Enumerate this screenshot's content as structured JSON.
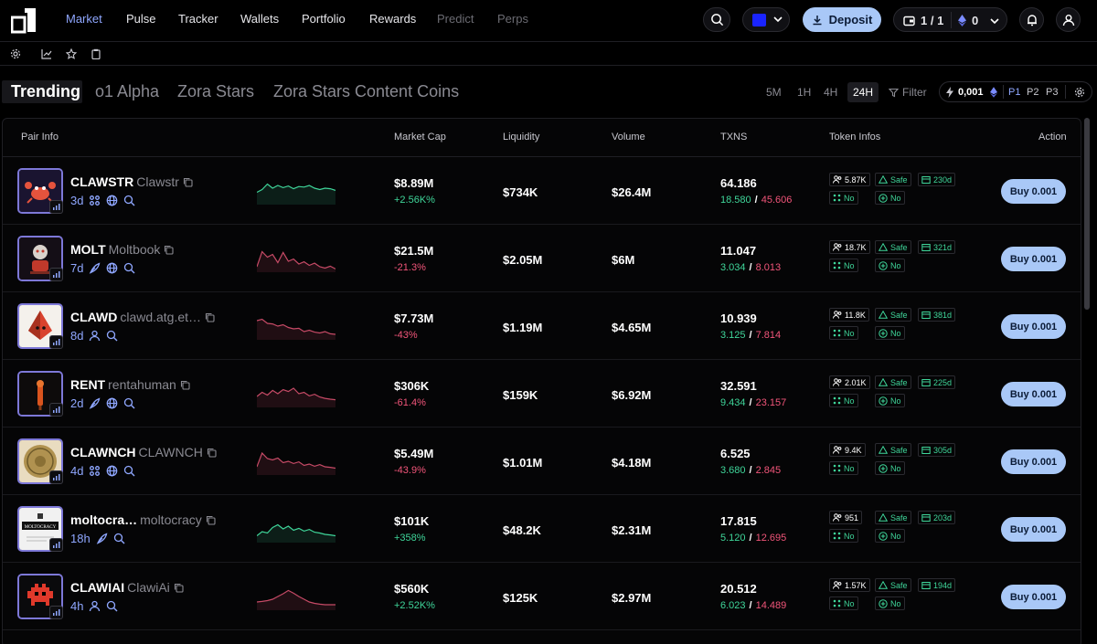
{
  "nav": {
    "items": [
      {
        "label": "Market",
        "state": "active"
      },
      {
        "label": "Pulse",
        "state": "normal"
      },
      {
        "label": "Tracker",
        "state": "normal"
      },
      {
        "label": "Wallets",
        "state": "normal"
      },
      {
        "label": "Portfolio",
        "state": "normal"
      },
      {
        "label": "Rewards",
        "state": "normal"
      },
      {
        "label": "Predict",
        "state": "disabled"
      },
      {
        "label": "Perps",
        "state": "disabled"
      }
    ],
    "chain_color": "#1a24ff",
    "deposit_label": "Deposit",
    "wallet_count": "1 / 1",
    "balance": "0"
  },
  "tabs": {
    "list": [
      "Trending",
      "o1 Alpha",
      "Zora Stars",
      "Zora Stars Content Coins"
    ],
    "active": "Trending",
    "timeframes": [
      "5M",
      "1H",
      "4H",
      "24H"
    ],
    "active_timeframe": "24H",
    "filter_label": "Filter",
    "buy_amount": "0,001",
    "presets": [
      "P1",
      "P2",
      "P3"
    ],
    "active_preset": "P1"
  },
  "table": {
    "headers": {
      "pair": "Pair Info",
      "mcap": "Market Cap",
      "liq": "Liquidity",
      "vol": "Volume",
      "txns": "TXNS",
      "token": "Token Infos",
      "action": "Action"
    },
    "rows": [
      {
        "ticker": "CLAWSTR",
        "name": "Clawstr",
        "age": "3d",
        "meta_icons": [
          "users-icon",
          "globe-icon",
          "search-icon"
        ],
        "trend": "up",
        "sparkline": [
          0.45,
          0.55,
          0.75,
          0.6,
          0.7,
          0.62,
          0.68,
          0.58,
          0.66,
          0.64,
          0.7,
          0.6,
          0.55,
          0.6,
          0.58,
          0.52
        ],
        "mcap": "$8.89M",
        "change": "+2.56K%",
        "change_dir": "pos",
        "liquidity": "$734K",
        "volume": "$26.4M",
        "txns": "64.186",
        "buys": "18.580",
        "sells": "45.606",
        "holders": "5.87K",
        "safe": "Safe",
        "age_days": "230d",
        "flag1": "No",
        "flag2": "No",
        "buy_label": "Buy 0.001",
        "art": "crab"
      },
      {
        "ticker": "MOLT",
        "name": "Moltbook",
        "age": "7d",
        "meta_icons": [
          "feather-icon",
          "globe-icon",
          "search-icon"
        ],
        "trend": "down",
        "sparkline": [
          0.2,
          0.75,
          0.55,
          0.65,
          0.35,
          0.72,
          0.4,
          0.48,
          0.3,
          0.38,
          0.25,
          0.33,
          0.2,
          0.15,
          0.22,
          0.12
        ],
        "mcap": "$21.5M",
        "change": "-21.3%",
        "change_dir": "neg",
        "liquidity": "$2.05M",
        "volume": "$6M",
        "txns": "11.047",
        "buys": "3.034",
        "sells": "8.013",
        "holders": "18.7K",
        "safe": "Safe",
        "age_days": "321d",
        "flag1": "No",
        "flag2": "No",
        "buy_label": "Buy 0.001",
        "art": "robot"
      },
      {
        "ticker": "CLAWD",
        "name": "clawd.atg.et…",
        "age": "8d",
        "meta_icons": [
          "user-icon",
          "search-icon"
        ],
        "trend": "down",
        "sparkline": [
          0.7,
          0.75,
          0.6,
          0.58,
          0.5,
          0.55,
          0.45,
          0.4,
          0.42,
          0.3,
          0.35,
          0.28,
          0.25,
          0.3,
          0.22,
          0.2
        ],
        "mcap": "$7.73M",
        "change": "-43%",
        "change_dir": "neg",
        "liquidity": "$1.19M",
        "volume": "$4.65M",
        "txns": "10.939",
        "buys": "3.125",
        "sells": "7.814",
        "holders": "11.8K",
        "safe": "Safe",
        "age_days": "381d",
        "flag1": "No",
        "flag2": "No",
        "buy_label": "Buy 0.001",
        "art": "gem"
      },
      {
        "ticker": "RENT",
        "name": "rentahuman",
        "age": "2d",
        "meta_icons": [
          "feather-icon",
          "globe-icon",
          "search-icon"
        ],
        "trend": "down",
        "sparkline": [
          0.4,
          0.55,
          0.45,
          0.62,
          0.5,
          0.65,
          0.58,
          0.7,
          0.5,
          0.55,
          0.42,
          0.48,
          0.38,
          0.33,
          0.3,
          0.28
        ],
        "mcap": "$306K",
        "change": "-61.4%",
        "change_dir": "neg",
        "liquidity": "$159K",
        "volume": "$6.92M",
        "txns": "32.591",
        "buys": "9.434",
        "sells": "23.157",
        "holders": "2.01K",
        "safe": "Safe",
        "age_days": "225d",
        "flag1": "No",
        "flag2": "No",
        "buy_label": "Buy 0.001",
        "art": "pin"
      },
      {
        "ticker": "CLAWNCH",
        "name": "CLAWNCH",
        "age": "4d",
        "meta_icons": [
          "users-icon",
          "globe-icon",
          "search-icon"
        ],
        "trend": "down",
        "sparkline": [
          0.3,
          0.8,
          0.6,
          0.55,
          0.62,
          0.45,
          0.5,
          0.42,
          0.48,
          0.35,
          0.4,
          0.32,
          0.38,
          0.3,
          0.28,
          0.25
        ],
        "mcap": "$5.49M",
        "change": "-43.9%",
        "change_dir": "neg",
        "liquidity": "$1.01M",
        "volume": "$4.18M",
        "txns": "6.525",
        "buys": "3.680",
        "sells": "2.845",
        "holders": "9.4K",
        "safe": "Safe",
        "age_days": "305d",
        "flag1": "No",
        "flag2": "No",
        "buy_label": "Buy 0.001",
        "art": "coin"
      },
      {
        "ticker": "moltocra…",
        "name": "moltocracy",
        "age": "18h",
        "meta_icons": [
          "feather-icon",
          "search-icon"
        ],
        "trend": "up",
        "sparkline": [
          0.25,
          0.4,
          0.35,
          0.55,
          0.65,
          0.5,
          0.6,
          0.45,
          0.52,
          0.42,
          0.48,
          0.38,
          0.35,
          0.3,
          0.28,
          0.25
        ],
        "mcap": "$101K",
        "change": "+358%",
        "change_dir": "pos",
        "liquidity": "$48.2K",
        "volume": "$2.31M",
        "txns": "17.815",
        "buys": "5.120",
        "sells": "12.695",
        "holders": "951",
        "safe": "Safe",
        "age_days": "203d",
        "flag1": "No",
        "flag2": "No",
        "buy_label": "Buy 0.001",
        "art": "text",
        "art_text": "MOLTOCRACY"
      },
      {
        "ticker": "CLAWIAI",
        "name": "ClawiAi",
        "age": "4h",
        "meta_icons": [
          "user-icon",
          "search-icon"
        ],
        "trend": "down",
        "sparkline": [
          0.3,
          0.32,
          0.35,
          0.4,
          0.5,
          0.6,
          0.72,
          0.62,
          0.5,
          0.4,
          0.3,
          0.25,
          0.22,
          0.2,
          0.2,
          0.2
        ],
        "mcap": "$560K",
        "change": "+2.52K%",
        "change_dir": "pos",
        "liquidity": "$125K",
        "volume": "$2.97M",
        "txns": "20.512",
        "buys": "6.023",
        "sells": "14.489",
        "holders": "1.57K",
        "safe": "Safe",
        "age_days": "194d",
        "flag1": "No",
        "flag2": "No",
        "buy_label": "Buy 0.001",
        "art": "invader"
      }
    ]
  }
}
